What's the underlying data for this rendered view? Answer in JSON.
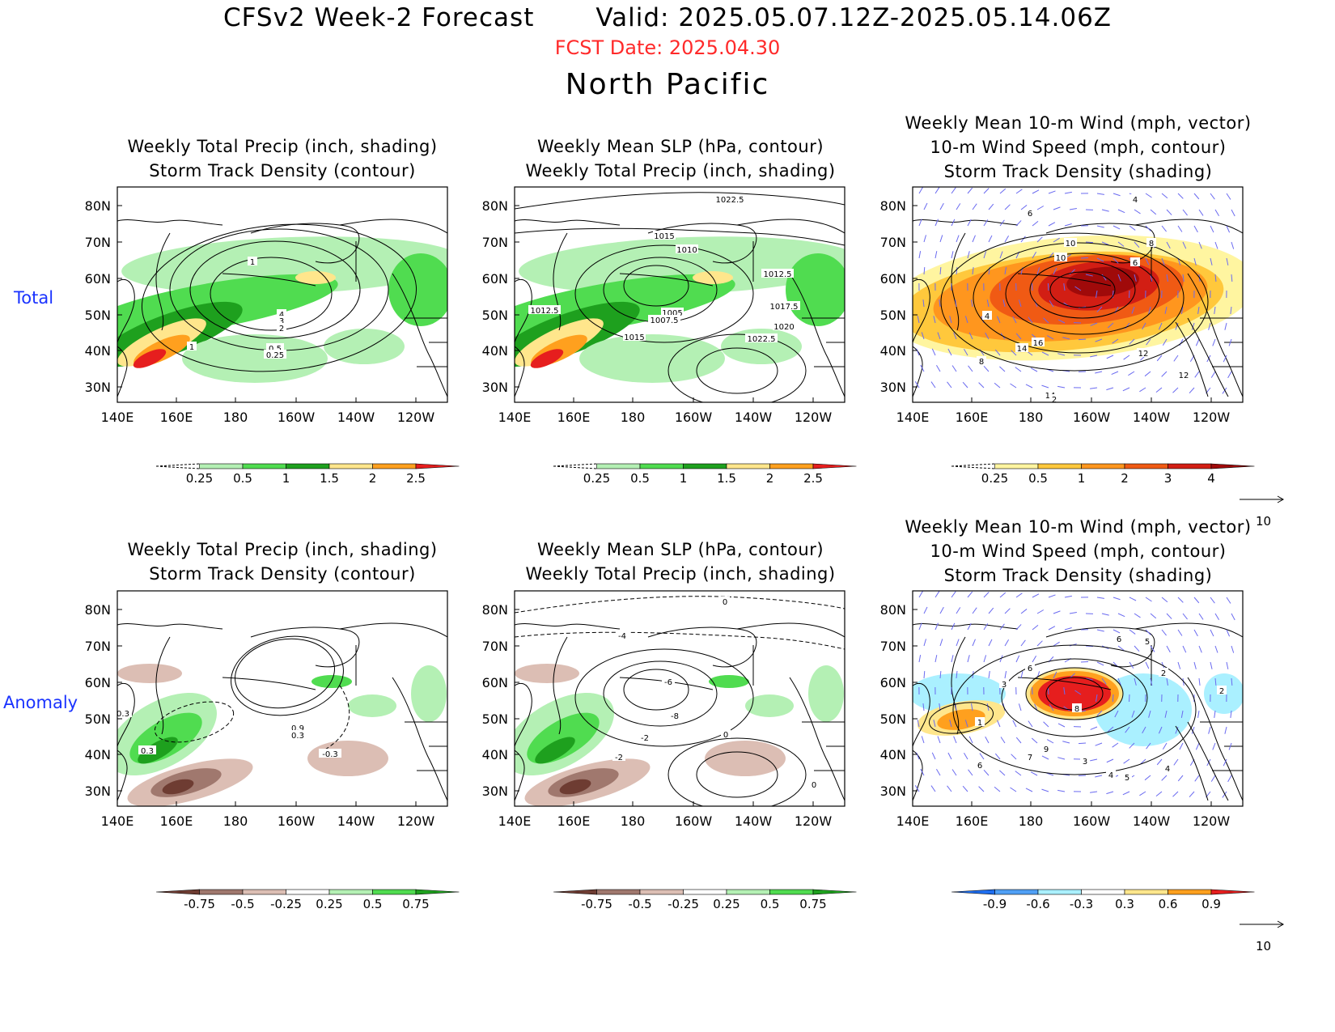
{
  "header": {
    "title": "CFSv2 Week-2 Forecast       Valid: 2025.05.07.12Z-2025.05.14.06Z",
    "fcst_date": "FCST Date: 2025.04.30",
    "region": "North Pacific"
  },
  "row_labels": [
    "Total",
    "Anomaly"
  ],
  "axes": {
    "lon_labels": [
      "140E",
      "160E",
      "180",
      "160W",
      "140W",
      "120W"
    ],
    "lat_labels": [
      "80N",
      "70N",
      "60N",
      "50N",
      "40N",
      "30N"
    ]
  },
  "panels": [
    {
      "row": 0,
      "col": 0,
      "title1": "Weekly Total Precip (inch, shading)",
      "title2": "Storm Track Density (contour)",
      "contour_labels": [
        "1",
        "4",
        "3",
        "2",
        "1",
        "0.5",
        "0.25"
      ]
    },
    {
      "row": 0,
      "col": 1,
      "title1": "Weekly Mean SLP (hPa, contour)",
      "title2": "Weekly Total Precip (inch, shading)",
      "contour_labels": [
        "1022.5",
        "1015",
        "1010",
        "1012.5",
        "1012.5",
        "1017.5",
        "1005",
        "1007.5",
        "1020",
        "1015",
        "1022.5"
      ]
    },
    {
      "row": 0,
      "col": 2,
      "title0": "Weekly Mean 10-m Wind (mph, vector)",
      "title1": "10-m Wind Speed (mph, contour)",
      "title2": "Storm Track Density (shading)",
      "contour_labels": [
        "4",
        "6",
        "10",
        "10",
        "8",
        "6",
        "4",
        "16",
        "14",
        "12",
        "8",
        "12",
        "14",
        "2"
      ]
    },
    {
      "row": 1,
      "col": 0,
      "title1": "Weekly Total Precip (inch, shading)",
      "title2": "Storm Track Density (contour)",
      "contour_labels": [
        "0.3",
        "0.3",
        "0.9",
        "0.3",
        "-0.3"
      ]
    },
    {
      "row": 1,
      "col": 1,
      "title1": "Weekly Mean SLP (hPa, contour)",
      "title2": "Weekly Total Precip (inch, shading)",
      "contour_labels": [
        "0",
        "-4",
        "-6",
        "-8",
        "-2",
        "0",
        "-2",
        "0"
      ]
    },
    {
      "row": 1,
      "col": 2,
      "title0": "Weekly Mean 10-m Wind (mph, vector)",
      "title1": "10-m Wind Speed (mph, contour)",
      "title2": "Storm Track Density (shading)",
      "contour_labels": [
        "6",
        "5",
        "6",
        "3",
        "8",
        "2",
        "1",
        "9",
        "7",
        "6",
        "3",
        "4",
        "5",
        "4",
        "2"
      ]
    }
  ],
  "colorbars": {
    "precip_total": {
      "labels": [
        "0.25",
        "0.5",
        "1",
        "1.5",
        "2",
        "2.5"
      ],
      "colors": [
        "#ffffff",
        "#b4f0b4",
        "#50dc50",
        "#1ea01e",
        "#ffe68c",
        "#ffa01e",
        "#e61e1e"
      ]
    },
    "storm_total": {
      "labels": [
        "0.25",
        "0.5",
        "1",
        "2",
        "3",
        "4"
      ],
      "colors": [
        "#ffffff",
        "#fff5a0",
        "#ffc83c",
        "#ff961e",
        "#f05a14",
        "#d21e14",
        "#a00a0a"
      ]
    },
    "precip_anom": {
      "labels": [
        "-0.75",
        "-0.5",
        "-0.25",
        "0.25",
        "0.5",
        "0.75"
      ],
      "colors": [
        "#6e3c32",
        "#a0786e",
        "#dcbeb4",
        "#ffffff",
        "#b4f0b4",
        "#50dc50",
        "#1ea01e"
      ]
    },
    "storm_anom": {
      "labels": [
        "-0.9",
        "-0.6",
        "-0.3",
        "0.3",
        "0.6",
        "0.9"
      ],
      "colors": [
        "#1e6ef0",
        "#50a0f5",
        "#aaf0ff",
        "#ffffff",
        "#ffe68c",
        "#ffa01e",
        "#e61e1e"
      ]
    }
  },
  "vector_key": {
    "label": "10"
  },
  "colors": {
    "title": "#000000",
    "fcst_date": "#ff2a2a",
    "row_label": "#1a33ff",
    "vectors": "#6a6af0"
  }
}
